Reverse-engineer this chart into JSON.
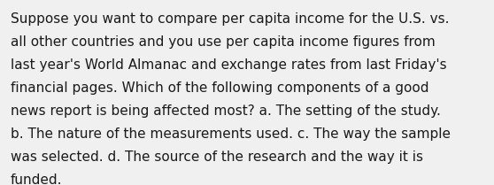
{
  "background_color": "#f0f0f0",
  "text_color": "#1a1a1a",
  "lines": [
    "Suppose you want to compare per capita income for the U.S. vs.",
    "all other countries and you use per capita income figures from",
    "last year's World Almanac and exchange rates from last Friday's",
    "financial pages. Which of the following components of a good",
    "news report is being affected most? a. The setting of the study.",
    "b. The nature of the measurements used. c. The way the sample",
    "was selected. d. The source of the research and the way it is",
    "funded."
  ],
  "font_size": 11.0,
  "fig_width": 5.58,
  "fig_height": 2.09,
  "dpi": 100
}
